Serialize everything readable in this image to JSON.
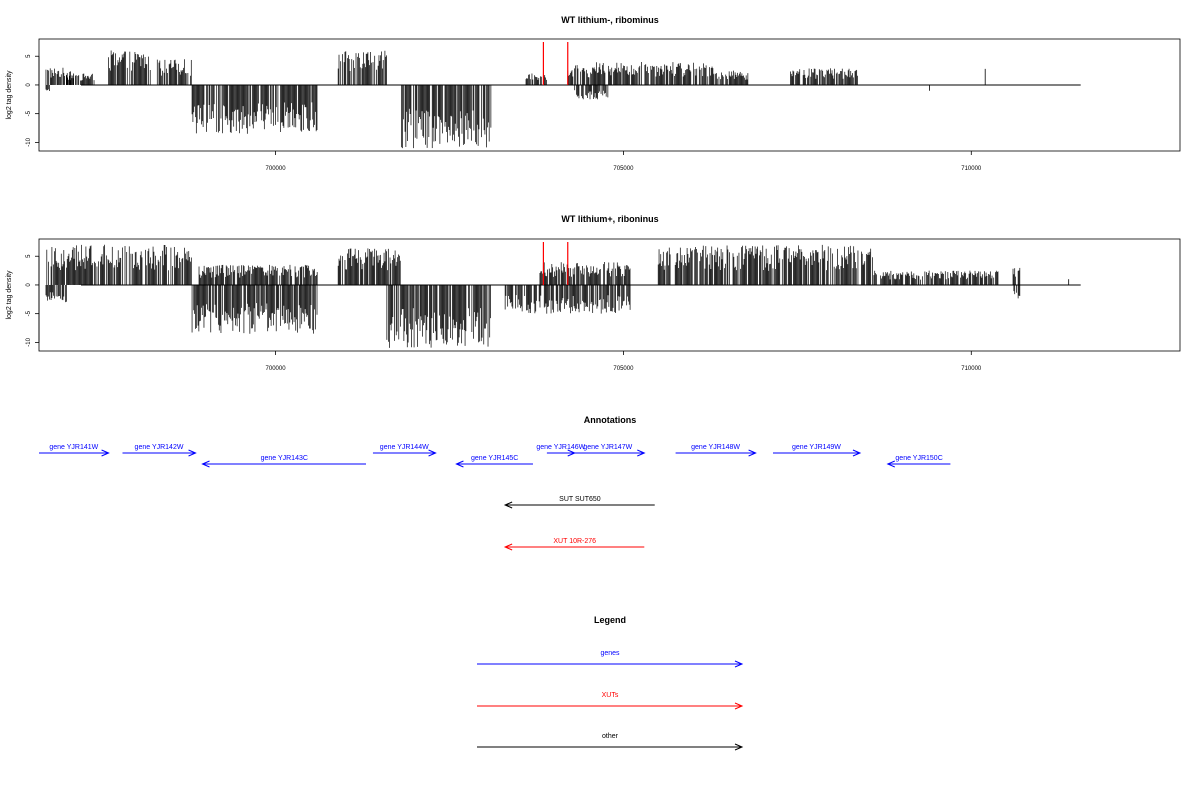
{
  "chart_data": [
    {
      "type": "bar",
      "title": "WT lithium-, ribominus",
      "ylabel": "log2 tag density",
      "xlim": [
        696600,
        713000
      ],
      "ylim": [
        -11.5,
        8
      ],
      "x_ticks": [
        700000,
        705000,
        710000
      ],
      "y_ticks": [
        5,
        0,
        -5,
        -10
      ],
      "marker_color": "#ff0000",
      "markers": [
        703850,
        704200
      ],
      "segments": [
        {
          "start": 696700,
          "end": 696750,
          "sign": -1,
          "max": 1.5
        },
        {
          "start": 696700,
          "end": 697100,
          "sign": 1,
          "max": 3
        },
        {
          "start": 697000,
          "end": 697400,
          "sign": 1,
          "max": 2
        },
        {
          "start": 697600,
          "end": 698200,
          "sign": 1,
          "max": 6
        },
        {
          "start": 698300,
          "end": 698800,
          "sign": 1,
          "max": 4.5
        },
        {
          "start": 698800,
          "end": 700600,
          "sign": -1,
          "max": 8.5
        },
        {
          "start": 700900,
          "end": 701600,
          "sign": 1,
          "max": 6
        },
        {
          "start": 701800,
          "end": 703100,
          "sign": -1,
          "max": 11
        },
        {
          "start": 703600,
          "end": 703900,
          "sign": 1,
          "max": 2
        },
        {
          "start": 704200,
          "end": 704600,
          "sign": 1,
          "max": 3.5
        },
        {
          "start": 704300,
          "end": 704800,
          "sign": -1,
          "max": 2.5
        },
        {
          "start": 704600,
          "end": 706300,
          "sign": 1,
          "max": 4
        },
        {
          "start": 706300,
          "end": 706800,
          "sign": 1,
          "max": 2.5
        },
        {
          "start": 707400,
          "end": 708400,
          "sign": 1,
          "max": 3
        }
      ],
      "spikes": [
        {
          "x": 709400,
          "y": -1
        },
        {
          "x": 710200,
          "y": 2.8
        }
      ]
    },
    {
      "type": "bar",
      "title": "WT lithium+, riboninus",
      "ylabel": "log2 tag density",
      "xlim": [
        696600,
        713000
      ],
      "ylim": [
        -11.5,
        8
      ],
      "x_ticks": [
        700000,
        705000,
        710000
      ],
      "y_ticks": [
        5,
        0,
        -5,
        -10
      ],
      "marker_color": "#ff0000",
      "markers": [
        703850,
        704200
      ],
      "segments": [
        {
          "start": 696700,
          "end": 698800,
          "sign": 1,
          "max": 7
        },
        {
          "start": 696700,
          "end": 697000,
          "sign": -1,
          "max": 3
        },
        {
          "start": 698800,
          "end": 700600,
          "sign": -1,
          "max": 8.5
        },
        {
          "start": 698900,
          "end": 700600,
          "sign": 1,
          "max": 3.5
        },
        {
          "start": 700900,
          "end": 701800,
          "sign": 1,
          "max": 6.5
        },
        {
          "start": 701600,
          "end": 703100,
          "sign": -1,
          "max": 11
        },
        {
          "start": 703300,
          "end": 705100,
          "sign": -1,
          "max": 5
        },
        {
          "start": 703800,
          "end": 705100,
          "sign": 1,
          "max": 4
        },
        {
          "start": 705500,
          "end": 708600,
          "sign": 1,
          "max": 7
        },
        {
          "start": 708600,
          "end": 710400,
          "sign": 1,
          "max": 2.5
        },
        {
          "start": 710600,
          "end": 710700,
          "sign": -1,
          "max": 2.5
        },
        {
          "start": 710600,
          "end": 710700,
          "sign": 1,
          "max": 3
        }
      ],
      "spikes": [
        {
          "x": 711400,
          "y": 1
        }
      ]
    }
  ],
  "annotations": {
    "title": "Annotations",
    "features": [
      {
        "label": "gene YJR141W",
        "start": 696600,
        "end": 697600,
        "dir": "+",
        "color": "#0000ff",
        "row": 0
      },
      {
        "label": "gene YJR142W",
        "start": 697800,
        "end": 698850,
        "dir": "+",
        "color": "#0000ff",
        "row": 0
      },
      {
        "label": "gene YJR143C",
        "start": 698950,
        "end": 701300,
        "dir": "-",
        "color": "#0000ff",
        "row": 1
      },
      {
        "label": "gene YJR144W",
        "start": 701400,
        "end": 702300,
        "dir": "+",
        "color": "#0000ff",
        "row": 0
      },
      {
        "label": "gene YJR145C",
        "start": 702600,
        "end": 703700,
        "dir": "-",
        "color": "#0000ff",
        "row": 1
      },
      {
        "label": "gene YJR146W",
        "start": 703900,
        "end": 704300,
        "dir": "+",
        "color": "#0000ff",
        "row": 0
      },
      {
        "label": "gene YJR147W",
        "start": 704250,
        "end": 705300,
        "dir": "+",
        "color": "#0000ff",
        "row": 0
      },
      {
        "label": "gene YJR148W",
        "start": 705750,
        "end": 706900,
        "dir": "+",
        "color": "#0000ff",
        "row": 0
      },
      {
        "label": "gene YJR149W",
        "start": 707150,
        "end": 708400,
        "dir": "+",
        "color": "#0000ff",
        "row": 0
      },
      {
        "label": "gene YJR150C",
        "start": 708800,
        "end": 709700,
        "dir": "-",
        "color": "#0000ff",
        "row": 1
      },
      {
        "label": "SUT SUT650",
        "start": 703300,
        "end": 705450,
        "dir": "-",
        "color": "#000000",
        "row": 2
      },
      {
        "label": "XUT 10R-276",
        "start": 703300,
        "end": 705300,
        "dir": "-",
        "color": "#ff0000",
        "row": 3
      }
    ]
  },
  "legend": {
    "title": "Legend",
    "items": [
      {
        "label": "genes",
        "color": "#0000ff"
      },
      {
        "label": "XUTs",
        "color": "#ff0000"
      },
      {
        "label": "other",
        "color": "#000000"
      }
    ]
  }
}
